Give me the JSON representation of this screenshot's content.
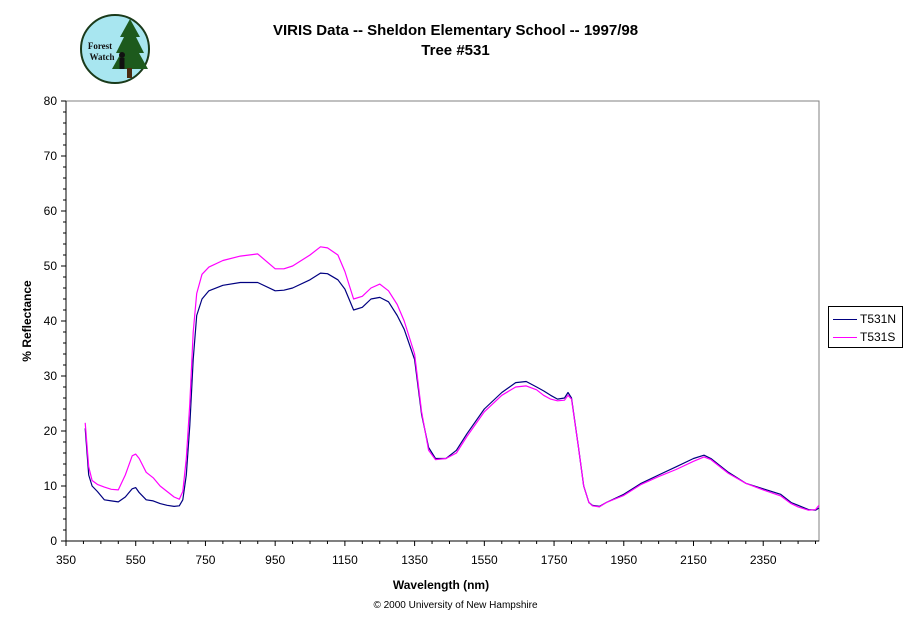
{
  "header": {
    "title": "VIRIS Data -- Sheldon Elementary School -- 1997/98",
    "subtitle": "Tree #531",
    "logo_text": [
      "Forest",
      "Watch"
    ]
  },
  "footer": {
    "copyright": "© 2000 University of New Hampshire"
  },
  "colors": {
    "plot_border": "#808080",
    "axis": "#000000",
    "logo_bg": "#a8e6f0"
  },
  "chart_data": {
    "type": "line",
    "title": "VIRIS Data -- Sheldon Elementary School -- 1997/98",
    "subtitle": "Tree #531",
    "xlabel": "Wavelength (nm)",
    "ylabel": "% Reflectance",
    "xlim": [
      350,
      2510
    ],
    "ylim": [
      0,
      80
    ],
    "xticks": [
      350,
      550,
      750,
      950,
      1150,
      1350,
      1550,
      1750,
      1950,
      2150,
      2350
    ],
    "yticks": [
      0,
      10,
      20,
      30,
      40,
      50,
      60,
      70,
      80
    ],
    "grid": false,
    "legend_position": "right",
    "series": [
      {
        "name": "T531N",
        "color": "#000080",
        "x": [
          405,
          415,
          425,
          440,
          460,
          480,
          500,
          520,
          540,
          550,
          560,
          580,
          600,
          620,
          640,
          660,
          675,
          685,
          695,
          705,
          715,
          725,
          740,
          760,
          800,
          850,
          900,
          950,
          975,
          1000,
          1050,
          1080,
          1100,
          1130,
          1150,
          1175,
          1200,
          1225,
          1250,
          1275,
          1300,
          1320,
          1350,
          1370,
          1390,
          1410,
          1440,
          1470,
          1500,
          1550,
          1600,
          1640,
          1670,
          1700,
          1720,
          1740,
          1760,
          1780,
          1790,
          1800,
          1820,
          1835,
          1850,
          1860,
          1880,
          1900,
          1950,
          2000,
          2050,
          2100,
          2150,
          2180,
          2200,
          2250,
          2300,
          2350,
          2400,
          2430,
          2450,
          2480,
          2500,
          2510
        ],
        "y": [
          20.5,
          12,
          10,
          9,
          7.5,
          7.3,
          7.1,
          8,
          9.5,
          9.7,
          8.8,
          7.5,
          7.3,
          6.8,
          6.5,
          6.3,
          6.4,
          7.5,
          12,
          21,
          33,
          41,
          44,
          45.5,
          46.5,
          47,
          47,
          45.5,
          45.6,
          46,
          47.5,
          48.7,
          48.6,
          47.5,
          45.8,
          42,
          42.5,
          44,
          44.3,
          43.5,
          41,
          38.5,
          33,
          23,
          17,
          15,
          15,
          16.5,
          19.5,
          24,
          27,
          28.8,
          29,
          28,
          27.3,
          26.5,
          25.8,
          26,
          27,
          26,
          17,
          10,
          7,
          6.5,
          6.3,
          7,
          8.5,
          10.5,
          12,
          13.5,
          15,
          15.6,
          15,
          12.5,
          10.5,
          9.5,
          8.5,
          7,
          6.5,
          5.7,
          5.6,
          6
        ]
      },
      {
        "name": "T531S",
        "color": "#ff00ff",
        "x": [
          405,
          415,
          425,
          440,
          460,
          480,
          500,
          520,
          540,
          550,
          560,
          580,
          600,
          620,
          640,
          660,
          675,
          685,
          695,
          705,
          715,
          725,
          740,
          760,
          800,
          850,
          900,
          950,
          975,
          1000,
          1050,
          1080,
          1100,
          1130,
          1150,
          1175,
          1200,
          1225,
          1250,
          1275,
          1300,
          1320,
          1350,
          1370,
          1390,
          1410,
          1440,
          1470,
          1500,
          1550,
          1600,
          1640,
          1670,
          1700,
          1720,
          1740,
          1760,
          1780,
          1790,
          1800,
          1820,
          1835,
          1850,
          1860,
          1880,
          1900,
          1950,
          2000,
          2050,
          2100,
          2150,
          2180,
          2200,
          2250,
          2300,
          2350,
          2400,
          2430,
          2450,
          2480,
          2500,
          2510
        ],
        "y": [
          21.5,
          13.5,
          11,
          10.3,
          9.8,
          9.4,
          9.3,
          12,
          15.5,
          15.8,
          15,
          12.5,
          11.5,
          10,
          9,
          8,
          7.6,
          9,
          15,
          25,
          38,
          45,
          48.5,
          49.8,
          51,
          51.8,
          52.2,
          49.5,
          49.5,
          50,
          52,
          53.5,
          53.3,
          52,
          49,
          44,
          44.5,
          46,
          46.7,
          45.5,
          43,
          40,
          34,
          23.5,
          16.5,
          14.8,
          15,
          16,
          19,
          23.5,
          26.5,
          28,
          28.2,
          27.5,
          26.5,
          25.8,
          25.5,
          25.6,
          26.5,
          25.8,
          17,
          10,
          7,
          6.4,
          6.2,
          7,
          8.3,
          10.3,
          11.7,
          13,
          14.5,
          15.3,
          14.8,
          12.3,
          10.5,
          9.3,
          8.2,
          6.8,
          6.2,
          5.6,
          5.7,
          6.5
        ]
      }
    ]
  }
}
